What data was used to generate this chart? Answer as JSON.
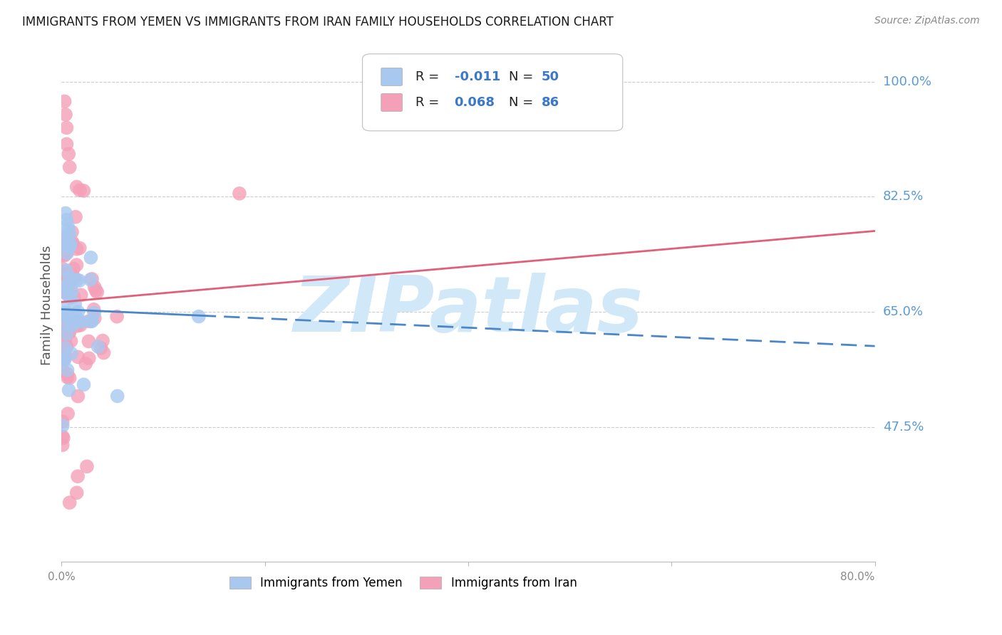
{
  "title": "IMMIGRANTS FROM YEMEN VS IMMIGRANTS FROM IRAN FAMILY HOUSEHOLDS CORRELATION CHART",
  "source": "Source: ZipAtlas.com",
  "ylabel": "Family Households",
  "xmin": 0.0,
  "xmax": 0.8,
  "ymin": 0.27,
  "ymax": 1.05,
  "ytick_vals": [
    1.0,
    0.825,
    0.65,
    0.475
  ],
  "ytick_labels": [
    "100.0%",
    "82.5%",
    "65.0%",
    "47.5%"
  ],
  "color_yemen": "#a8c8f0",
  "color_iran": "#f4a0b8",
  "color_trendline_yemen": "#4a86c8",
  "color_trendline_iran": "#e0607a",
  "watermark": "ZIPatlas",
  "watermark_color": "#d0e8f8",
  "background_color": "#ffffff",
  "legend_r_yemen_prefix": "R = ",
  "legend_r_yemen_val": "-0.011",
  "legend_n_yemen_prefix": "  N = ",
  "legend_n_yemen_val": "50",
  "legend_r_iran_prefix": "R = ",
  "legend_r_iran_val": "0.068",
  "legend_n_iran_prefix": "  N = ",
  "legend_n_iran_val": "86",
  "legend_text_color": "#222222",
  "legend_val_color": "#3a78c9",
  "axis_label_color": "#5b9bd5",
  "grid_color": "#cccccc",
  "spine_color": "#bbbbbb"
}
